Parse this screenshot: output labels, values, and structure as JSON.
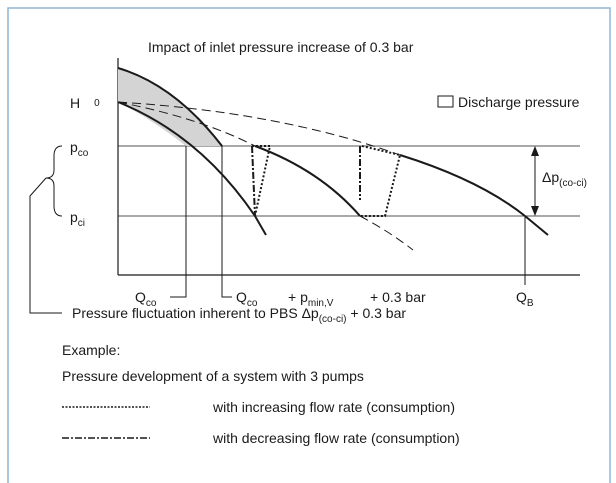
{
  "diagram": {
    "impact_label": "Impact of inlet pressure increase of 0.3 bar",
    "legend_label": "Discharge pressure",
    "axis_h": {
      "main": "H",
      "sub": "0"
    },
    "p_co": {
      "main": "p",
      "sub": "co"
    },
    "p_ci": {
      "main": "p",
      "sub": "ci"
    },
    "delta_p": {
      "main": "Δp",
      "sub": "(co-ci)"
    },
    "q_co_1": {
      "main": "Q",
      "sub": "co"
    },
    "q_co_2": {
      "main": "Q",
      "sub": "co"
    },
    "plus_pmin": {
      "main": "+ p",
      "sub": "min,V"
    },
    "plus_bar": "+ 0.3 bar",
    "q_b": {
      "main": "Q",
      "sub": "B"
    },
    "fluctuation": {
      "main": "Pressure fluctuation inherent to PBS Δp",
      "sub": "(co-ci)",
      "tail": " + 0.3 bar"
    },
    "example": "Example:",
    "example_desc": "Pressure development of a system with 3 pumps",
    "increasing": "with increasing flow rate (consumption)",
    "decreasing": "with decreasing flow rate (consumption)"
  }
}
